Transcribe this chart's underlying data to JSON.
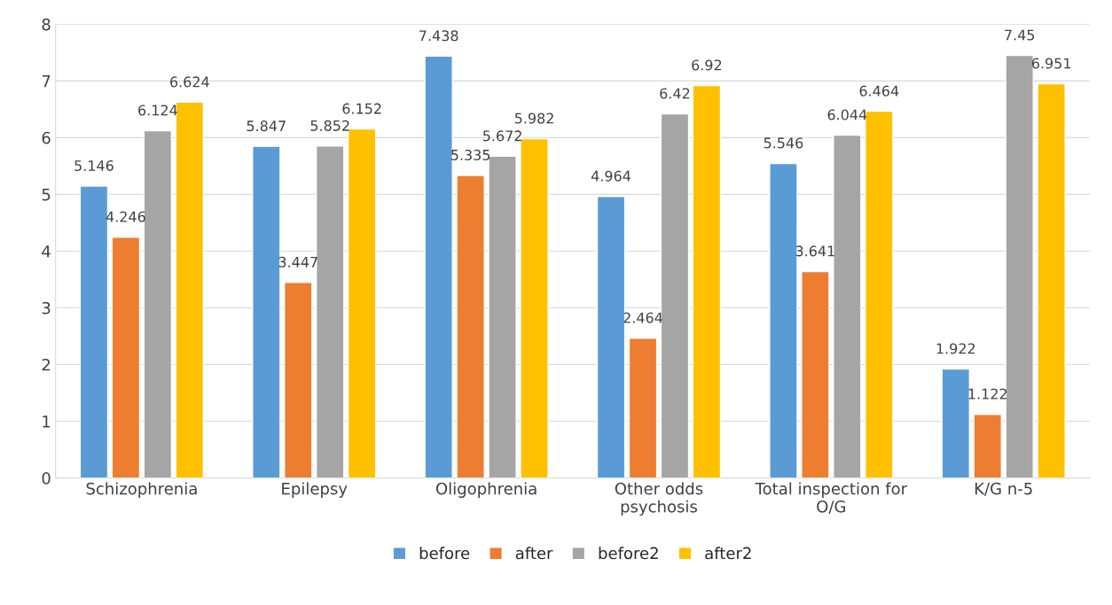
{
  "chart_data": {
    "type": "bar",
    "categories": [
      "Schizophrenia",
      "Epilepsy",
      "Oligophrenia",
      "Other odds\npsychosis",
      "Total inspection for\nO/G",
      "K/G n-5"
    ],
    "series": [
      {
        "name": "before",
        "color": "#5b9bd5",
        "values": [
          5.146,
          5.847,
          7.438,
          4.964,
          5.546,
          1.922
        ]
      },
      {
        "name": "after",
        "color": "#ed7d31",
        "values": [
          4.246,
          3.447,
          5.335,
          2.464,
          3.641,
          1.122
        ]
      },
      {
        "name": "before2",
        "color": "#a5a5a5",
        "values": [
          6.124,
          5.852,
          5.672,
          6.42,
          6.044,
          7.45
        ]
      },
      {
        "name": "after2",
        "color": "#ffc000",
        "values": [
          6.624,
          6.152,
          5.982,
          6.92,
          6.464,
          6.951
        ]
      }
    ],
    "ylim": [
      0,
      8
    ],
    "yticks": [
      0,
      1,
      2,
      3,
      4,
      5,
      6,
      7,
      8
    ],
    "grid": "y",
    "legend": "bottom",
    "data_labels": true
  }
}
